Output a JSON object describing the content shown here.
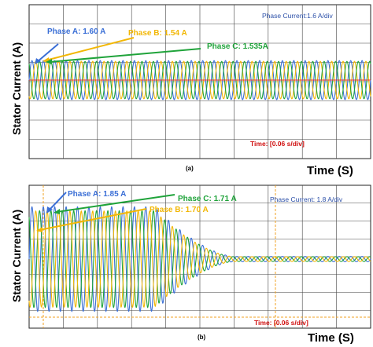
{
  "colors": {
    "phase_a": "#3b6fd6",
    "phase_b": "#f2b705",
    "phase_c": "#1fa33a",
    "scale_text": "#2b4fa8",
    "time_text": "#d01010",
    "grid": "#444444",
    "marker": "#f0a020"
  },
  "chart_data": [
    {
      "type": "line",
      "panel_label": "(a)",
      "ylabel": "Stator Current (A)",
      "xlabel": "Time (S)",
      "scale_note": "Phase Current:1.6 A/div",
      "time_note": "Time: [0.06 s/div]",
      "grid": true,
      "divisions": {
        "x": 10,
        "y": 8
      },
      "duration_s": 0.6,
      "series": [
        {
          "name": "Phase A",
          "label": "Phase A: 1.60 A",
          "amplitude_a": 1.6,
          "frequency_hz": 50,
          "phase_deg": 0
        },
        {
          "name": "Phase B",
          "label": "Phase B: 1.54 A",
          "amplitude_a": 1.54,
          "frequency_hz": 50,
          "phase_deg": -120
        },
        {
          "name": "Phase C",
          "label": "Phase C: 1.535A",
          "amplitude_a": 1.535,
          "frequency_hz": 50,
          "phase_deg": 120
        }
      ]
    },
    {
      "type": "line",
      "panel_label": "(b)",
      "ylabel": "Stator Current (A)",
      "xlabel": "Time (S)",
      "scale_note": "Phase Current: 1.8 A/div",
      "time_note": "Time: [0.06 s/div]",
      "grid": true,
      "divisions": {
        "x": 10,
        "y": 8
      },
      "duration_s": 0.6,
      "steady_until_s": 0.22,
      "decay_end_s": 0.36,
      "residual_a": 0.05,
      "series": [
        {
          "name": "Phase A",
          "label": "Phase A: 1.85 A",
          "amplitude_a": 1.85,
          "frequency_hz": 50,
          "phase_deg": 0
        },
        {
          "name": "Phase C",
          "label": "Phase C: 1.71 A",
          "amplitude_a": 1.71,
          "frequency_hz": 50,
          "phase_deg": 120
        },
        {
          "name": "Phase B",
          "label": "Phase B: 1.70 A",
          "amplitude_a": 1.7,
          "frequency_hz": 50,
          "phase_deg": -120
        }
      ]
    }
  ]
}
